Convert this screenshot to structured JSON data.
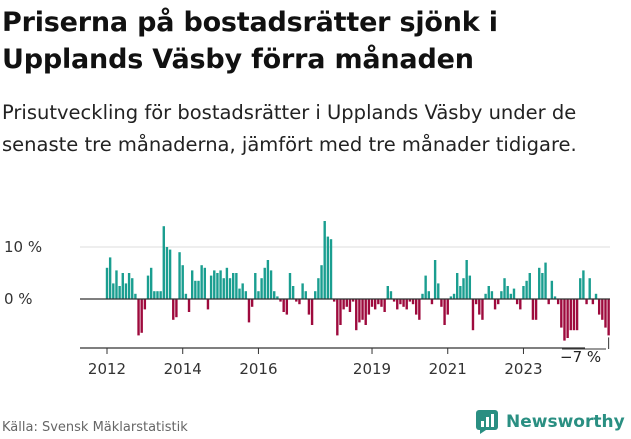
{
  "title": "Priserna på bostadsrätter sjönk i Upplands Väsby förra månaden",
  "subtitle": "Prisutveckling för bostadsrätter i Upplands Väsby under de senaste tre månaderna, jämfört med tre månader tidigare.",
  "source": "Källa: Svensk Mäklarstatistik",
  "brand": "Newsworthy",
  "colors": {
    "positive": "#1a9e90",
    "negative": "#9e0a3d",
    "brand": "#2a8f82"
  },
  "chart_data": {
    "type": "bar",
    "unit": "%",
    "ylim": [
      -9,
      18
    ],
    "y_ticks": [
      {
        "value": 10,
        "label": "10 %"
      },
      {
        "value": 0,
        "label": "0 %"
      }
    ],
    "x_ticks": [
      {
        "index": 0,
        "label": "2012"
      },
      {
        "index": 24,
        "label": "2014"
      },
      {
        "index": 48,
        "label": "2016"
      },
      {
        "index": 84,
        "label": "2019"
      },
      {
        "index": 108,
        "label": "2021"
      },
      {
        "index": 132,
        "label": "2023"
      }
    ],
    "last_value_label": "−7 %",
    "values": [
      6,
      8,
      3,
      5.5,
      2.5,
      5,
      3,
      5,
      4,
      1,
      -7,
      -6.5,
      -2,
      4.5,
      6,
      1.5,
      1.5,
      1.5,
      14,
      10,
      9.5,
      -4,
      -3.5,
      9,
      6.5,
      1,
      -2.5,
      5.5,
      3.5,
      3.5,
      6.5,
      6,
      -2,
      4.5,
      5.5,
      5,
      5.5,
      4,
      6,
      4,
      5,
      5,
      2,
      3,
      1.5,
      -4.5,
      -1.5,
      5,
      1.5,
      4,
      6,
      7.5,
      5.5,
      1.5,
      0.5,
      -0.5,
      -2.5,
      -3,
      5,
      2.5,
      -0.5,
      -1,
      3,
      1.5,
      -3,
      -5,
      1.5,
      4,
      6.5,
      15,
      12,
      11.5,
      -0.5,
      -7,
      -5,
      -2,
      -1.5,
      -2.5,
      -0.5,
      -6,
      -4.5,
      -4,
      -5,
      -3,
      -1.5,
      -2,
      -1,
      -1.5,
      -2.5,
      2.5,
      1.5,
      -0.5,
      -2,
      -1,
      -1.5,
      -2,
      -0.5,
      -1,
      -3,
      -4,
      1,
      4.5,
      1.5,
      -1,
      7.5,
      3,
      -1.5,
      -5,
      -3,
      0.5,
      1,
      5,
      2.5,
      4,
      7.5,
      4.5,
      -6,
      -1,
      -3,
      -4,
      1,
      2.5,
      1.5,
      -2,
      -1,
      1.5,
      4,
      2.5,
      1,
      2,
      -1,
      -2,
      2.5,
      3.5,
      5,
      -4,
      -4,
      6,
      5,
      7,
      -1,
      3.5,
      0.5,
      -1,
      -5.5,
      -8,
      -7.5,
      -6,
      -6,
      -6,
      4,
      5.5,
      -1,
      4,
      -1,
      1,
      -3,
      -4,
      -5.5,
      -7
    ]
  }
}
